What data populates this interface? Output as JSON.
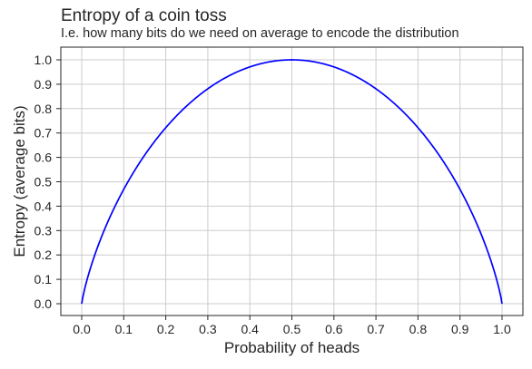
{
  "chart_data": {
    "type": "line",
    "title": "Entropy of a coin toss",
    "subtitle": "I.e. how many bits do we need on average to encode the distribution",
    "xlabel": "Probability of heads",
    "ylabel": "Entropy (average bits)",
    "xlim": [
      0.0,
      1.0
    ],
    "ylim": [
      0.0,
      1.0
    ],
    "xticks": [
      "0.0",
      "0.1",
      "0.2",
      "0.3",
      "0.4",
      "0.5",
      "0.6",
      "0.7",
      "0.8",
      "0.9",
      "1.0"
    ],
    "yticks": [
      "0.0",
      "0.1",
      "0.2",
      "0.3",
      "0.4",
      "0.5",
      "0.6",
      "0.7",
      "0.8",
      "0.9",
      "1.0"
    ],
    "grid": true,
    "series": [
      {
        "color": "#0000ff",
        "x": [
          0.0,
          0.01,
          0.02,
          0.05,
          0.1,
          0.15,
          0.2,
          0.25,
          0.3,
          0.35,
          0.4,
          0.45,
          0.5,
          0.55,
          0.6,
          0.65,
          0.7,
          0.75,
          0.8,
          0.85,
          0.9,
          0.95,
          0.98,
          0.99,
          1.0
        ],
        "y": [
          0.0,
          0.081,
          0.141,
          0.286,
          0.469,
          0.61,
          0.722,
          0.811,
          0.881,
          0.934,
          0.971,
          0.993,
          1.0,
          0.993,
          0.971,
          0.934,
          0.881,
          0.811,
          0.722,
          0.61,
          0.469,
          0.286,
          0.141,
          0.081,
          0.0
        ]
      }
    ]
  }
}
